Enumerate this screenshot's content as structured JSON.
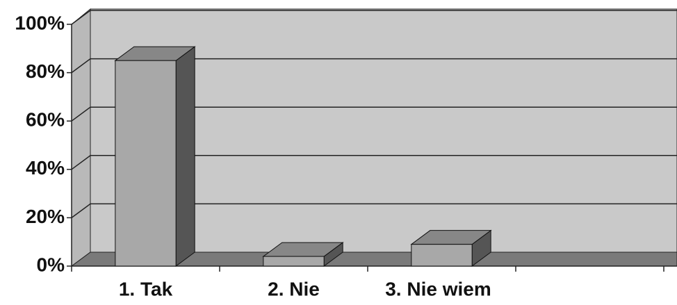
{
  "chart_data": {
    "type": "bar3d",
    "categories": [
      "1. Tak",
      "2. Nie",
      "3. Nie wiem",
      null
    ],
    "values": [
      85,
      4,
      9,
      null
    ],
    "color": "#a8a8a8",
    "ylim": [
      0,
      100
    ],
    "yticks": [
      {
        "value": 0,
        "label": "0%"
      },
      {
        "value": 20,
        "label": "20%"
      },
      {
        "value": 40,
        "label": "40%"
      },
      {
        "value": 60,
        "label": "60%"
      },
      {
        "value": 80,
        "label": "80%"
      },
      {
        "value": 100,
        "label": "100%"
      }
    ],
    "grid": true
  }
}
